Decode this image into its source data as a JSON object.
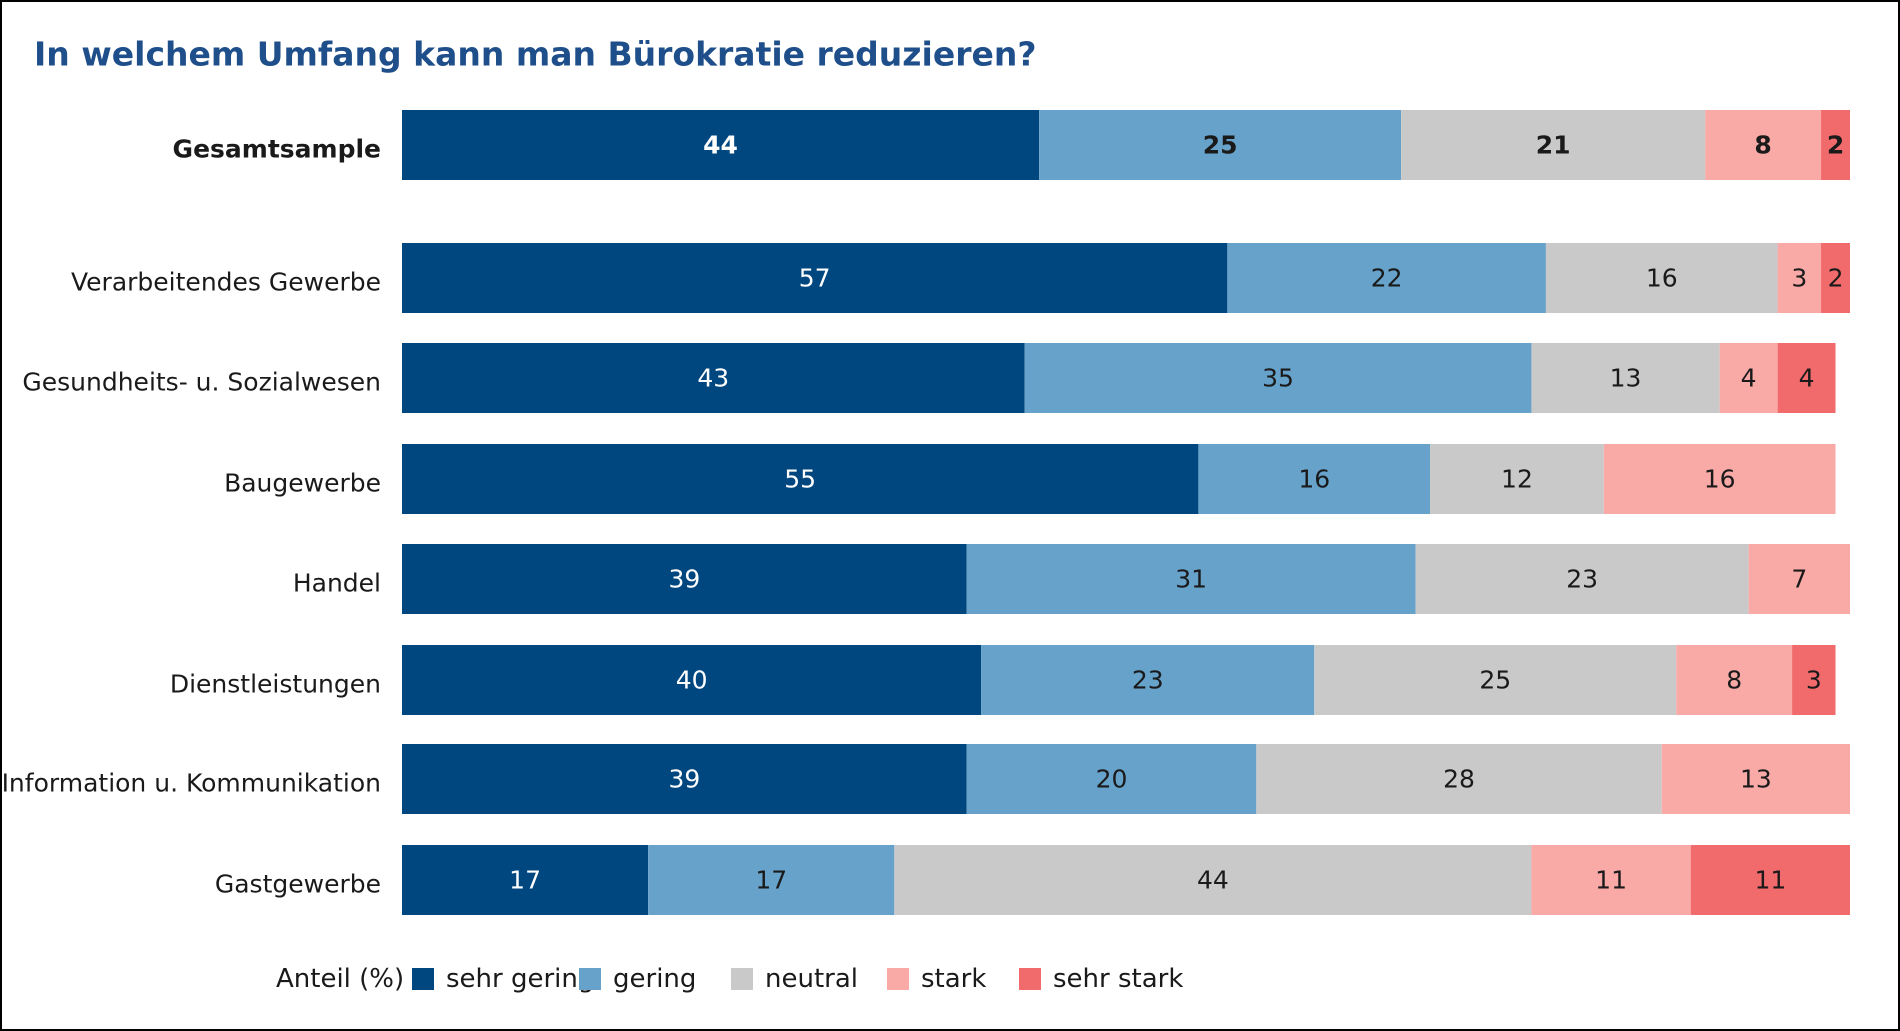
{
  "chart_data": {
    "type": "stacked-barh",
    "title": "In welchem Umfang kann man Bürokratie reduzieren?",
    "categories": [
      "Gesamtsample",
      "Verarbeitendes Gewerbe",
      "Gesundheits- u. Sozialwesen",
      "Baugewerbe",
      "Handel",
      "Dienstleistungen",
      "Information u. Kommunikation",
      "Gastgewerbe"
    ],
    "series": [
      {
        "name": "sehr gering",
        "color": "#00467f",
        "values": [
          44,
          57,
          43,
          55,
          39,
          40,
          39,
          17
        ]
      },
      {
        "name": "gering",
        "color": "#66a2ca",
        "values": [
          25,
          22,
          35,
          16,
          31,
          23,
          20,
          17
        ]
      },
      {
        "name": "neutral",
        "color": "#c9c9c9",
        "values": [
          21,
          16,
          13,
          12,
          23,
          25,
          28,
          44
        ]
      },
      {
        "name": "stark",
        "color": "#f9aaa7",
        "values": [
          8,
          3,
          4,
          16,
          7,
          8,
          13,
          11
        ]
      },
      {
        "name": "sehr stark",
        "color": "#f26b6c",
        "values": [
          2,
          2,
          4,
          null,
          null,
          3,
          null,
          11
        ]
      }
    ],
    "legend_title": "Anteil (%)",
    "xlim": [
      0,
      100
    ]
  }
}
